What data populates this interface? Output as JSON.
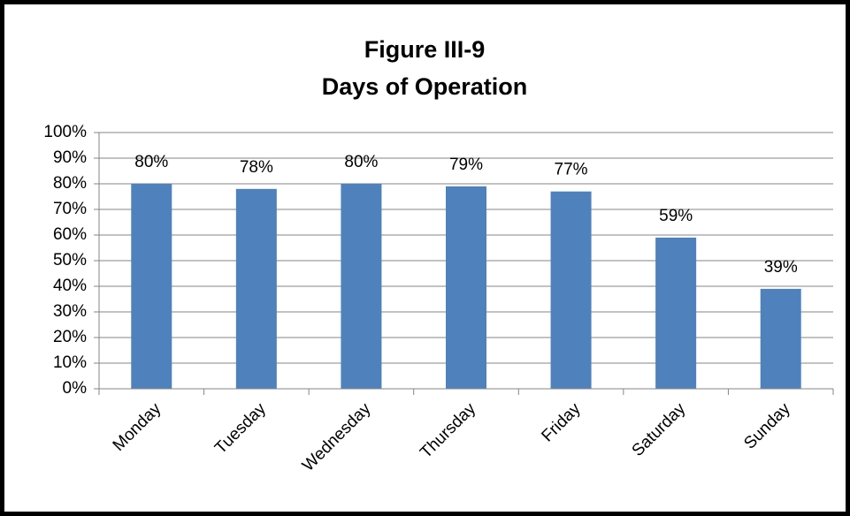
{
  "chart_data": {
    "type": "bar",
    "title": "Figure III-9",
    "subtitle": "Days of Operation",
    "categories": [
      "Monday",
      "Tuesday",
      "Wednesday",
      "Thursday",
      "Friday",
      "Saturday",
      "Sunday"
    ],
    "values": [
      80,
      78,
      80,
      79,
      77,
      59,
      39
    ],
    "value_labels": [
      "80%",
      "78%",
      "80%",
      "79%",
      "77%",
      "59%",
      "39%"
    ],
    "color": "#4f81bd",
    "ylim": [
      0,
      100
    ],
    "yticks": [
      {
        "value": 0,
        "label": "0%"
      },
      {
        "value": 10,
        "label": "10%"
      },
      {
        "value": 20,
        "label": "20%"
      },
      {
        "value": 30,
        "label": "30%"
      },
      {
        "value": 40,
        "label": "40%"
      },
      {
        "value": 50,
        "label": "50%"
      },
      {
        "value": 60,
        "label": "60%"
      },
      {
        "value": 70,
        "label": "70%"
      },
      {
        "value": 80,
        "label": "80%"
      },
      {
        "value": 90,
        "label": "90%"
      },
      {
        "value": 100,
        "label": "100%"
      }
    ],
    "grid": true
  }
}
